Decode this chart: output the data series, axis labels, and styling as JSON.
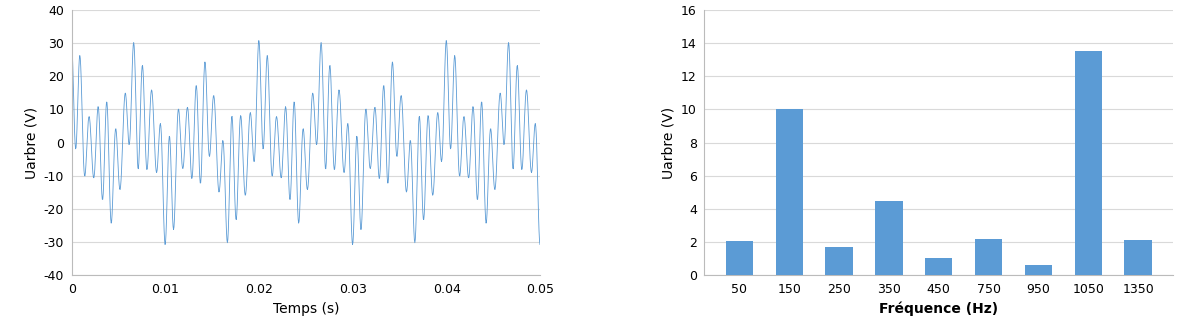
{
  "bar_categories": [
    50,
    150,
    250,
    350,
    450,
    750,
    950,
    1050,
    1350
  ],
  "bar_values": [
    2.1,
    10.0,
    1.7,
    4.5,
    1.05,
    2.2,
    0.6,
    13.5,
    2.15
  ],
  "bar_color": "#5B9BD5",
  "bar_xlabel": "Fréquence (Hz)",
  "bar_ylabel": "Uarbre (V)",
  "bar_ylim": [
    0,
    16
  ],
  "bar_yticks": [
    0,
    2,
    4,
    6,
    8,
    10,
    12,
    14,
    16
  ],
  "time_xlabel": "Temps (s)",
  "time_ylabel": "Uarbre (V)",
  "time_xlim": [
    0,
    0.05
  ],
  "time_ylim": [
    -40,
    40
  ],
  "time_yticks": [
    -40,
    -30,
    -20,
    -10,
    0,
    10,
    20,
    30,
    40
  ],
  "time_xticks": [
    0,
    0.01,
    0.02,
    0.03,
    0.04,
    0.05
  ],
  "time_xtick_labels": [
    "0",
    "0.01",
    "0.02",
    "0.03",
    "0.04",
    "0.05"
  ],
  "line_color": "#5B9BD5",
  "line_width": 0.6,
  "grid_color": "#D9D9D9",
  "background_color": "#FFFFFF",
  "xlabel_fontsize": 10,
  "ylabel_fontsize": 10,
  "tick_fontsize": 9,
  "phases": [
    0.3,
    1.2,
    2.5,
    0.8,
    1.7,
    3.1,
    0.5,
    2.0,
    1.4
  ]
}
